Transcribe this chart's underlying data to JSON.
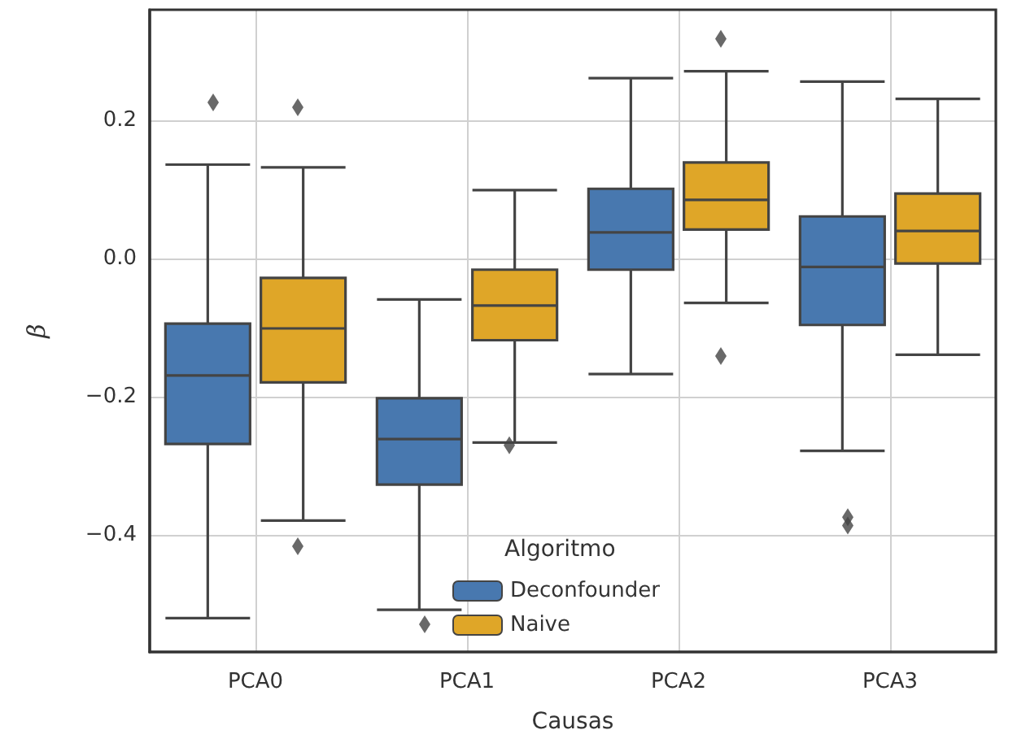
{
  "chart_data": {
    "type": "box",
    "xlabel": "Causas",
    "ylabel": "β",
    "legend_title": "Algoritmo",
    "categories": [
      "PCA0",
      "PCA1",
      "PCA2",
      "PCA3"
    ],
    "series": [
      {
        "name": "Deconfounder",
        "color": "#4878af",
        "boxes": [
          {
            "low": -0.52,
            "q1": -0.268,
            "median": -0.169,
            "q3": -0.094,
            "high": 0.136,
            "outliers": [
              0.226
            ]
          },
          {
            "low": -0.508,
            "q1": -0.327,
            "median": -0.261,
            "q3": -0.202,
            "high": -0.059,
            "outliers": [
              -0.529
            ]
          },
          {
            "low": -0.167,
            "q1": -0.016,
            "median": 0.038,
            "q3": 0.101,
            "high": 0.261
          },
          {
            "low": -0.278,
            "q1": -0.096,
            "median": -0.012,
            "q3": 0.061,
            "high": 0.256,
            "outliers": [
              -0.374,
              -0.386
            ]
          }
        ]
      },
      {
        "name": "Naive",
        "color": "#dfa628",
        "boxes": [
          {
            "low": -0.379,
            "q1": -0.179,
            "median": -0.101,
            "q3": -0.028,
            "high": 0.132,
            "outliers": [
              0.219,
              -0.416
            ]
          },
          {
            "low": -0.266,
            "q1": -0.118,
            "median": -0.068,
            "q3": -0.016,
            "high": 0.099,
            "outliers": [
              -0.27
            ]
          },
          {
            "low": -0.064,
            "q1": 0.042,
            "median": 0.085,
            "q3": 0.139,
            "high": 0.271,
            "outliers": [
              0.318,
              -0.141
            ]
          },
          {
            "low": -0.139,
            "q1": -0.007,
            "median": 0.04,
            "q3": 0.094,
            "high": 0.231
          }
        ]
      }
    ],
    "ylim": [
      -0.569,
      0.36
    ],
    "yticks": [
      {
        "value": -0.4,
        "label": "−0.4"
      },
      {
        "value": -0.2,
        "label": "−0.2"
      },
      {
        "value": 0,
        "label": "0.0"
      },
      {
        "value": 0.2,
        "label": "0.2"
      }
    ],
    "grid": true,
    "legend": "bottom",
    "marker": "diamond"
  }
}
